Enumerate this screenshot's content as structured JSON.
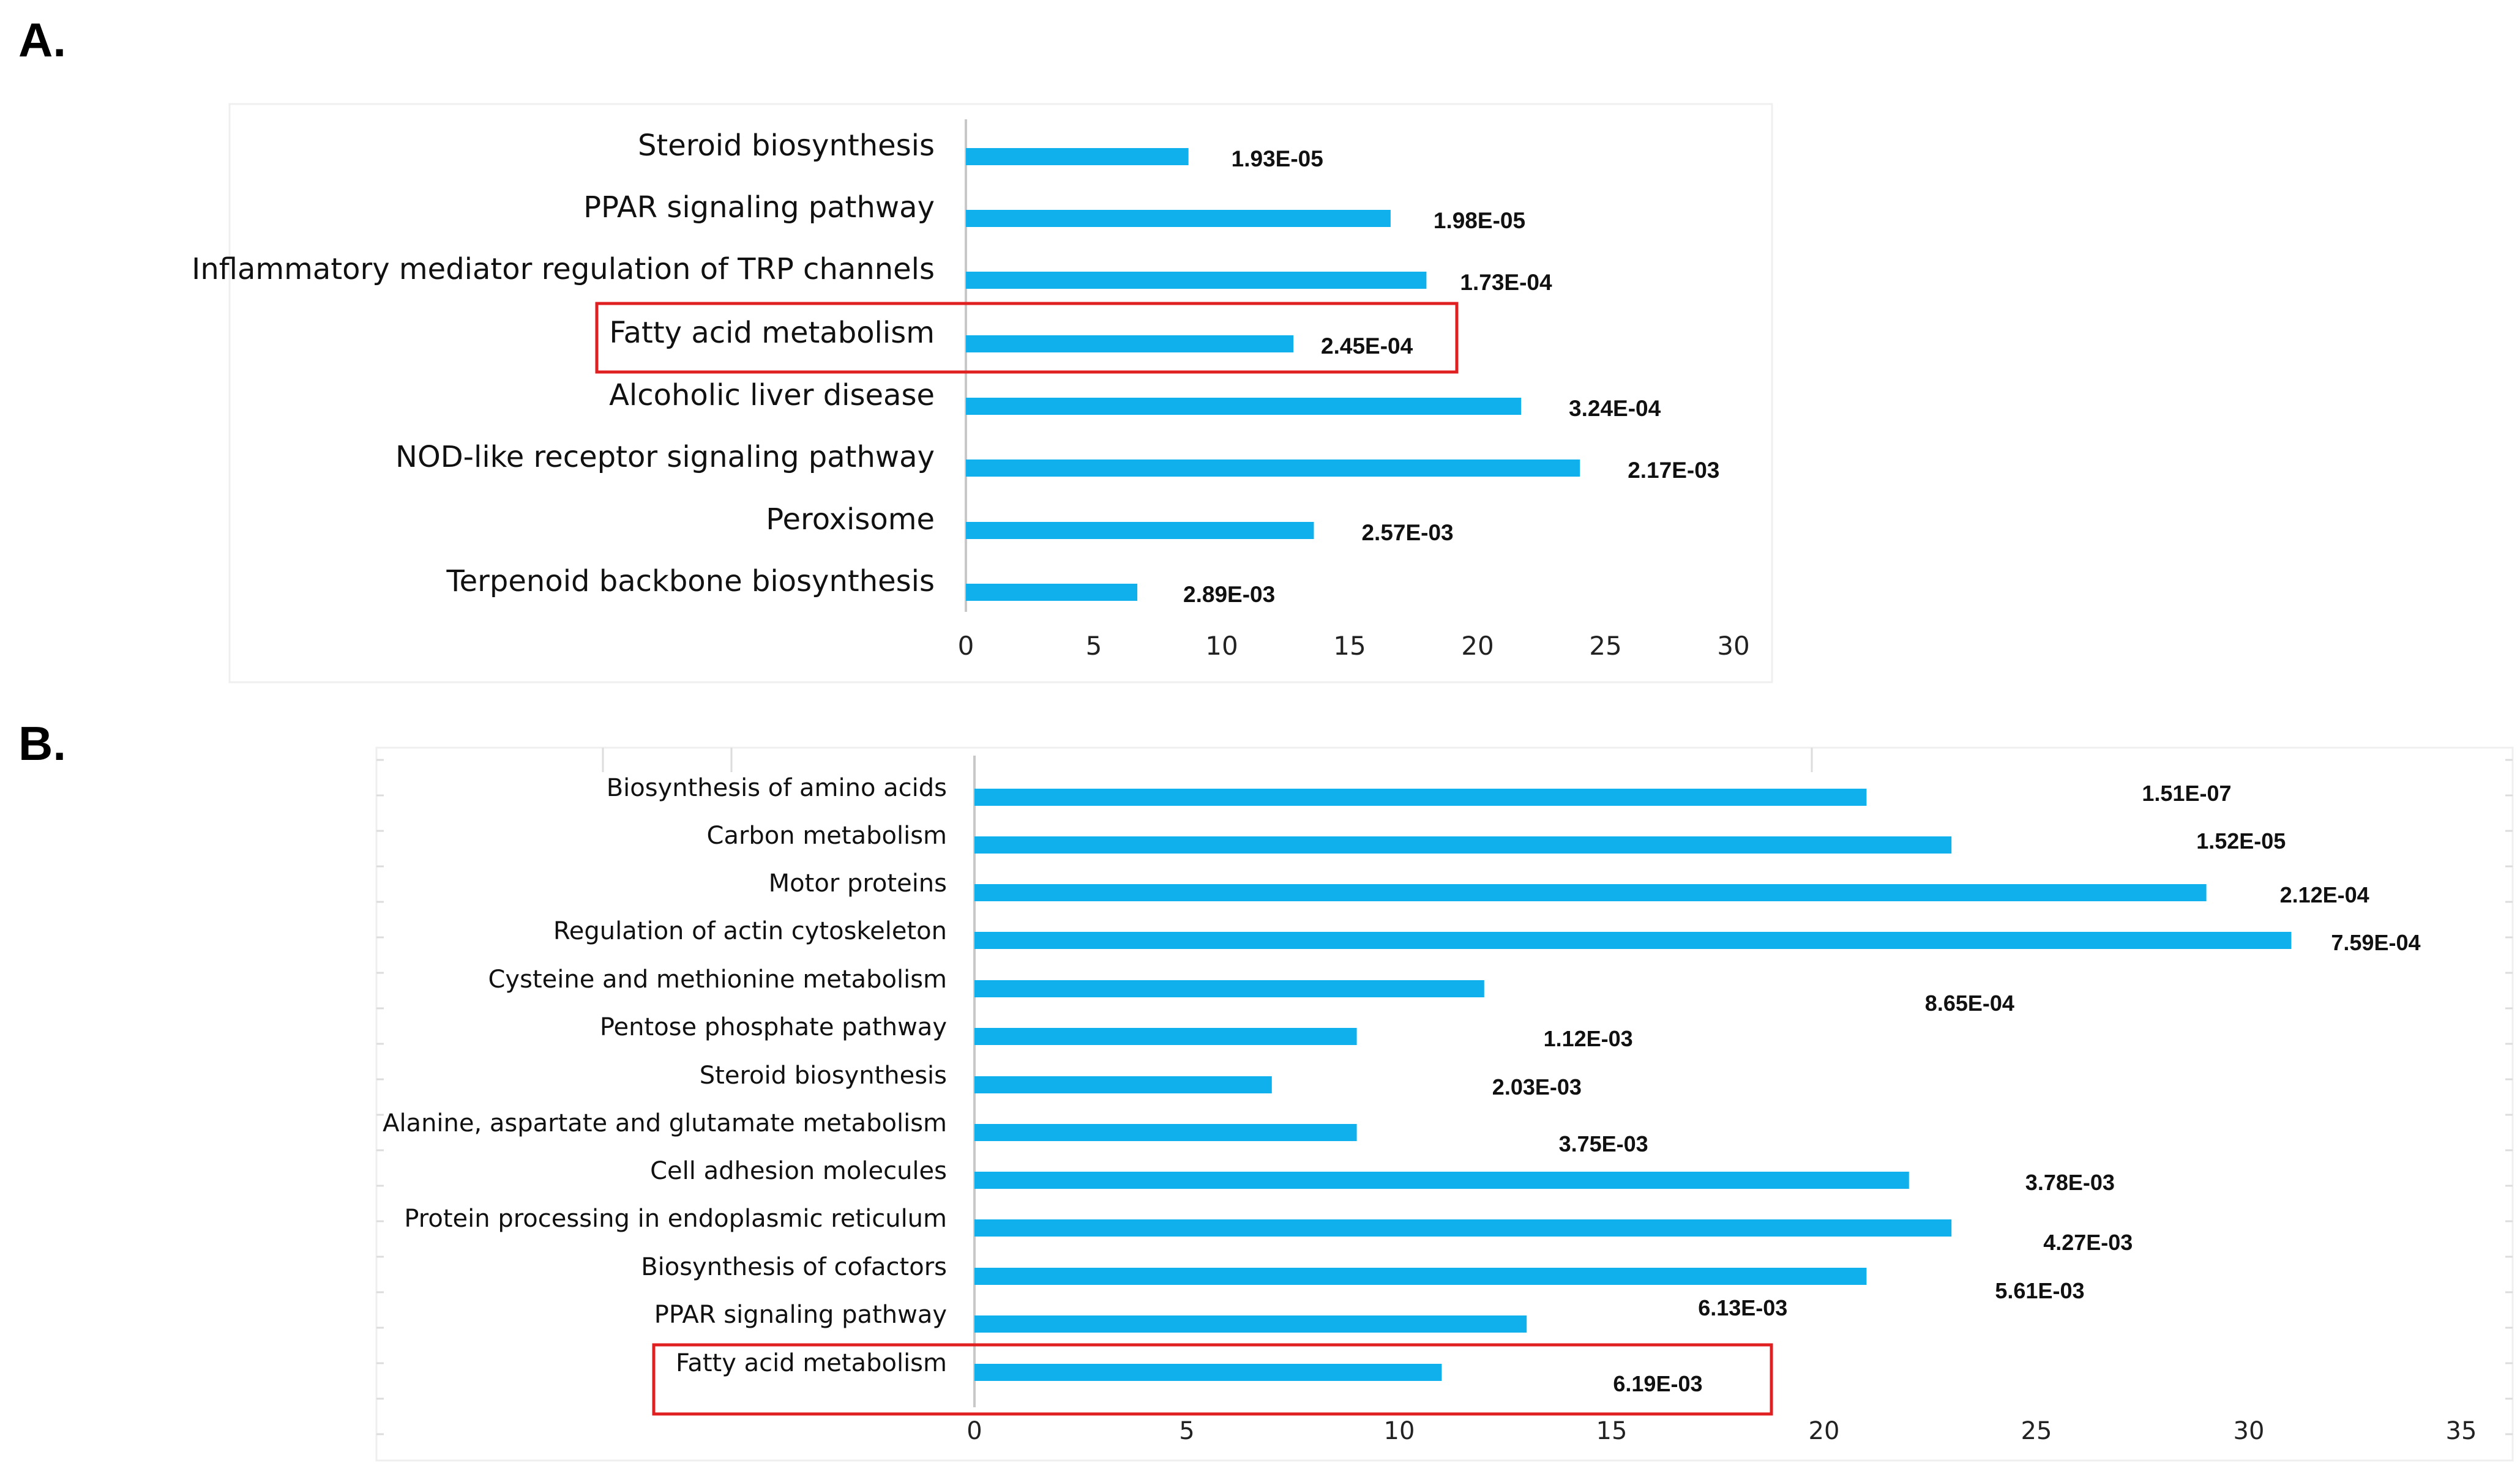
{
  "panels": {
    "a_letter": "A.",
    "b_letter": "B."
  },
  "colors": {
    "bar": "#10B0EC",
    "highlight_box": "#E02020",
    "axis": "#c8c8c8",
    "grid": "#dcdcdc"
  },
  "chart_data": [
    {
      "type": "bar",
      "orientation": "horizontal",
      "panel": "A.",
      "categories": [
        "Steroid biosynthesis",
        "PPAR signaling pathway",
        "Inflammatory mediator regulation of TRP channels",
        "Fatty acid metabolism",
        "Alcoholic liver disease",
        "NOD-like receptor signaling pathway",
        "Peroxisome",
        "Terpenoid backbone biosynthesis"
      ],
      "values": [
        8.7,
        16.6,
        18,
        12.8,
        21.7,
        24,
        13.6,
        6.7
      ],
      "data_labels": [
        "1.93E-05",
        "1.98E-05",
        "1.73E-04",
        "2.45E-04",
        "3.24E-04",
        "2.17E-03",
        "2.57E-03",
        "2.89E-03"
      ],
      "xlim": [
        0,
        30
      ],
      "xticks": [
        "0",
        "5",
        "10",
        "15",
        "20",
        "25",
        "30"
      ],
      "highlighted": "Fatty acid metabolism",
      "title": "",
      "xlabel": "",
      "ylabel": ""
    },
    {
      "type": "bar",
      "orientation": "horizontal",
      "panel": "B.",
      "categories": [
        "Biosynthesis of amino acids",
        "Carbon metabolism",
        "Motor proteins",
        "Regulation of actin cytoskeleton",
        "Cysteine and methionine metabolism",
        "Pentose phosphate pathway",
        "Steroid biosynthesis",
        "Alanine, aspartate and glutamate metabolism",
        "Cell adhesion molecules",
        "Protein processing in endoplasmic reticulum",
        "Biosynthesis of cofactors",
        "PPAR signaling pathway",
        "Fatty acid metabolism"
      ],
      "values": [
        21,
        23,
        29,
        31,
        12,
        9,
        7,
        9,
        22,
        23,
        21,
        13,
        11
      ],
      "data_labels": [
        "1.51E-07",
        "1.52E-05",
        "2.12E-04",
        "7.59E-04",
        "8.65E-04",
        "1.12E-03",
        "2.03E-03",
        "3.75E-03",
        "3.78E-03",
        "4.27E-03",
        "5.61E-03",
        "6.13E-03",
        "6.19E-03"
      ],
      "xlim": [
        0,
        35
      ],
      "xticks": [
        "0",
        "5",
        "10",
        "15",
        "20",
        "25",
        "30",
        "35"
      ],
      "highlighted": "Fatty acid metabolism",
      "title": "",
      "xlabel": "",
      "ylabel": ""
    }
  ]
}
